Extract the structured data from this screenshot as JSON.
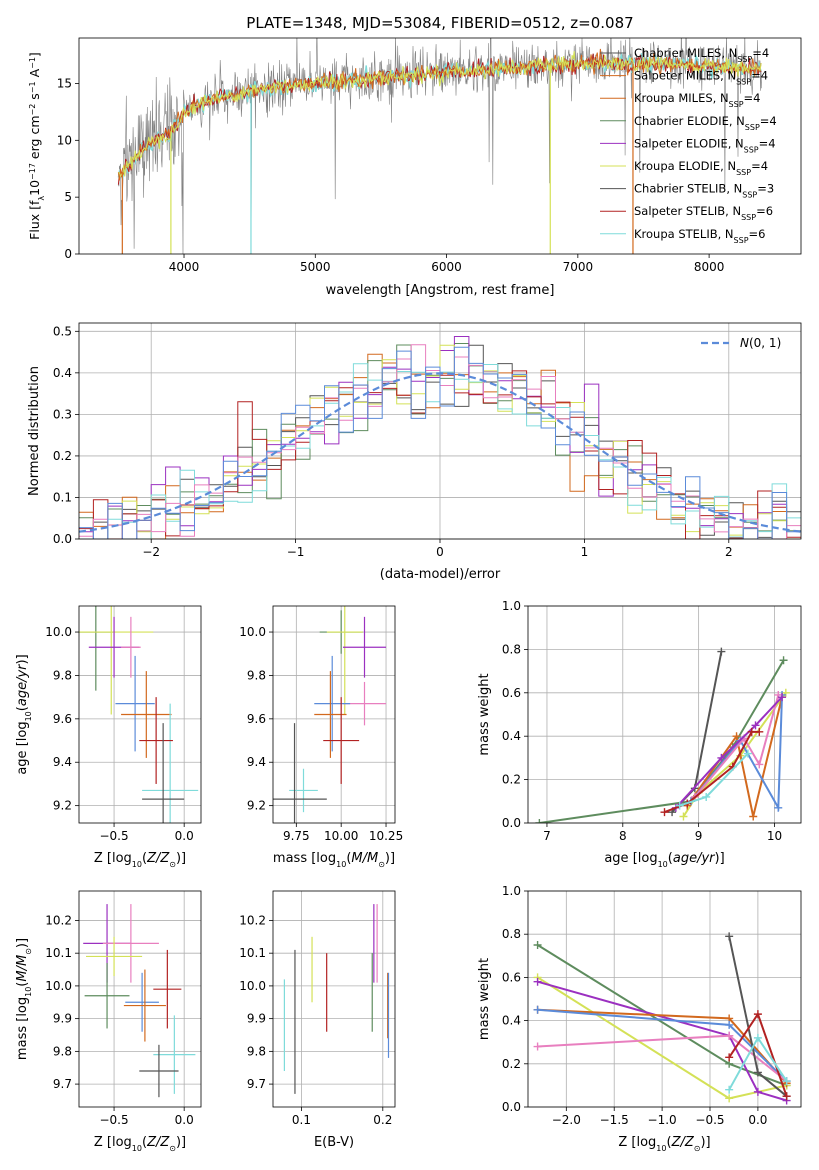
{
  "figure_title": "PLATE=1348, MJD=53084, FIBERID=0512, z=0.087",
  "colors": {
    "model1": "#1f77b4",
    "model2": "#ff7f0e",
    "model3": "#d2691e",
    "model4": "#5e8c5e",
    "model5": "#9b30c0",
    "model6": "#d4e157",
    "model7": "#555555",
    "model8": "#b22222",
    "model9": "#7fdbda",
    "model_blue": "#5b8bd9",
    "model_pink": "#e87fbf",
    "normal_curve": "#5b8bd9"
  },
  "chart_data": [
    {
      "id": "spectrum",
      "type": "line",
      "title": "PLATE=1348, MJD=53084, FIBERID=0512, z=0.087",
      "xlabel": "wavelength [Angstrom, rest frame]",
      "ylabel": "Flux [f_λ 10^-17 erg cm^-2 s^-1 A^-1]",
      "xlim": [
        3200,
        8700
      ],
      "ylim": [
        0,
        19
      ],
      "xticks": [
        4000,
        5000,
        6000,
        7000,
        8000
      ],
      "yticks": [
        0,
        5,
        10,
        15
      ],
      "legend_position": "right",
      "legend": [
        "Chabrier MILES, N_SSP=4",
        "Salpeter MILES, N_SSP=4",
        "Kroupa MILES, N_SSP=4",
        "Chabrier ELODIE, N_SSP=4",
        "Salpeter ELODIE, N_SSP=4",
        "Kroupa ELODIE, N_SSP=4",
        "Chabrier STELIB, N_SSP=3",
        "Salpeter STELIB, N_SSP=6",
        "Kroupa STELIB, N_SSP=6"
      ],
      "continuum": {
        "x": [
          3500,
          3700,
          3900,
          4000,
          4100,
          4300,
          4600,
          5000,
          5500,
          6000,
          6500,
          7000,
          7500,
          8000,
          8400
        ],
        "y": [
          6.8,
          9.5,
          10.8,
          12.3,
          13.2,
          13.8,
          14.6,
          15.0,
          15.5,
          16.0,
          16.4,
          16.7,
          16.7,
          16.5,
          16.3
        ]
      },
      "grid": false
    },
    {
      "id": "residuals",
      "type": "histogram",
      "xlabel": "(data-model)/error",
      "ylabel": "Normed distribution",
      "xlim": [
        -2.5,
        2.5
      ],
      "ylim": [
        0,
        0.52
      ],
      "xticks": [
        -2,
        -1,
        0,
        1,
        2
      ],
      "yticks": [
        0.0,
        0.1,
        0.2,
        0.3,
        0.4,
        0.5
      ],
      "legend": [
        "N(0, 1)"
      ],
      "legend_position": "top-right",
      "grid": true,
      "bin_width": 0.1,
      "bin_start": -2.5
    },
    {
      "id": "age_vs_Z",
      "type": "scatter",
      "xlabel": "Z [log10(Z/Z_sun)]",
      "ylabel": "age [log10(age/yr)]",
      "xlim": [
        -0.75,
        0.12
      ],
      "ylim": [
        9.12,
        10.12
      ],
      "xticks": [
        -0.5,
        0.0
      ],
      "yticks": [
        9.2,
        9.4,
        9.6,
        9.8,
        10.0
      ],
      "grid": true,
      "points": [
        {
          "x": -0.63,
          "y": 10.0,
          "xerr": 0.12,
          "yerr": 0.27,
          "color": "#5e8c5e"
        },
        {
          "x": -0.52,
          "y": 10.0,
          "xerr": 0.3,
          "yerr": 0.38,
          "color": "#d4e157"
        },
        {
          "x": -0.5,
          "y": 9.93,
          "xerr": 0.18,
          "yerr": 0.14,
          "color": "#9b30c0"
        },
        {
          "x": -0.38,
          "y": 9.93,
          "xerr": 0.07,
          "yerr": 0.14,
          "color": "#e87fbf"
        },
        {
          "x": -0.35,
          "y": 9.67,
          "xerr": 0.14,
          "yerr": 0.22,
          "color": "#5b8bd9"
        },
        {
          "x": -0.27,
          "y": 9.62,
          "xerr": 0.18,
          "yerr": 0.2,
          "color": "#d2691e"
        },
        {
          "x": -0.1,
          "y": 9.27,
          "xerr": 0.2,
          "yerr": 0.4,
          "color": "#7fdbda"
        },
        {
          "x": -0.2,
          "y": 9.5,
          "xerr": 0.12,
          "yerr": 0.2,
          "color": "#b22222"
        },
        {
          "x": -0.15,
          "y": 9.23,
          "xerr": 0.15,
          "yerr": 0.35,
          "color": "#555555"
        }
      ]
    },
    {
      "id": "age_vs_mass",
      "type": "scatter",
      "xlabel": "mass [log10(M/M_sun)]",
      "ylabel": "",
      "xlim": [
        9.62,
        10.3
      ],
      "ylim": [
        9.12,
        10.12
      ],
      "xticks": [
        9.75,
        10.0,
        10.25
      ],
      "yticks": [
        9.2,
        9.4,
        9.6,
        9.8,
        10.0
      ],
      "grid": true,
      "points": [
        {
          "x": 10.0,
          "y": 10.0,
          "xerr": 0.12,
          "yerr": 0.1,
          "color": "#5e8c5e"
        },
        {
          "x": 10.02,
          "y": 10.0,
          "xerr": 0.1,
          "yerr": 0.38,
          "color": "#d4e157"
        },
        {
          "x": 10.13,
          "y": 9.93,
          "xerr": 0.12,
          "yerr": 0.14,
          "color": "#9b30c0"
        },
        {
          "x": 10.13,
          "y": 9.67,
          "xerr": 0.12,
          "yerr": 0.1,
          "color": "#e87fbf"
        },
        {
          "x": 9.95,
          "y": 9.67,
          "xerr": 0.1,
          "yerr": 0.22,
          "color": "#5b8bd9"
        },
        {
          "x": 9.94,
          "y": 9.62,
          "xerr": 0.09,
          "yerr": 0.2,
          "color": "#d2691e"
        },
        {
          "x": 9.79,
          "y": 9.27,
          "xerr": 0.08,
          "yerr": 0.1,
          "color": "#7fdbda"
        },
        {
          "x": 10.0,
          "y": 9.5,
          "xerr": 0.1,
          "yerr": 0.2,
          "color": "#b22222"
        },
        {
          "x": 9.74,
          "y": 9.23,
          "xerr": 0.18,
          "yerr": 0.35,
          "color": "#555555"
        }
      ]
    },
    {
      "id": "weight_vs_age",
      "type": "line",
      "xlabel": "age [log10(age/yr)]",
      "ylabel": "mass weight",
      "xlim": [
        6.75,
        10.35
      ],
      "ylim": [
        0,
        1.0
      ],
      "xticks": [
        7,
        8,
        9,
        10
      ],
      "yticks": [
        0.0,
        0.2,
        0.4,
        0.6,
        0.8,
        1.0
      ],
      "grid": true,
      "series": [
        {
          "color": "#555555",
          "x": [
            8.65,
            8.95,
            9.3
          ],
          "y": [
            0.05,
            0.16,
            0.79
          ]
        },
        {
          "color": "#5e8c5e",
          "x": [
            6.9,
            8.9,
            9.45,
            10.12
          ],
          "y": [
            0.0,
            0.1,
            0.35,
            0.75
          ]
        },
        {
          "color": "#d4e157",
          "x": [
            8.8,
            9.0,
            9.55,
            10.15
          ],
          "y": [
            0.03,
            0.14,
            0.31,
            0.6
          ]
        },
        {
          "color": "#d2691e",
          "x": [
            8.85,
            9.5,
            9.72,
            10.1
          ],
          "y": [
            0.08,
            0.4,
            0.03,
            0.58
          ]
        },
        {
          "color": "#5b8bd9",
          "x": [
            8.9,
            9.55,
            10.05,
            10.1
          ],
          "y": [
            0.1,
            0.38,
            0.07,
            0.59
          ]
        },
        {
          "color": "#e87fbf",
          "x": [
            8.95,
            9.6,
            9.8,
            10.05
          ],
          "y": [
            0.12,
            0.39,
            0.27,
            0.59
          ]
        },
        {
          "color": "#9b30c0",
          "x": [
            8.7,
            9.3,
            9.75,
            10.1
          ],
          "y": [
            0.07,
            0.3,
            0.45,
            0.58
          ]
        },
        {
          "color": "#b22222",
          "x": [
            8.55,
            8.85,
            9.45,
            9.7,
            9.8
          ],
          "y": [
            0.05,
            0.09,
            0.26,
            0.42,
            0.42
          ]
        },
        {
          "color": "#7fdbda",
          "x": [
            8.75,
            9.1,
            9.65
          ],
          "y": [
            0.08,
            0.12,
            0.32
          ]
        }
      ]
    },
    {
      "id": "mass_vs_Z",
      "type": "scatter",
      "xlabel": "Z [log10(Z/Z_sun)]",
      "ylabel": "mass [log10(M/M_sun)]",
      "xlim": [
        -0.75,
        0.12
      ],
      "ylim": [
        9.63,
        10.29
      ],
      "xticks": [
        -0.5,
        0.0
      ],
      "yticks": [
        9.7,
        9.8,
        9.9,
        10.0,
        10.1,
        10.2
      ],
      "grid": true,
      "points": [
        {
          "x": -0.55,
          "y": 10.13,
          "xerr": 0.17,
          "yerr": 0.12,
          "color": "#9b30c0"
        },
        {
          "x": -0.38,
          "y": 10.13,
          "xerr": 0.2,
          "yerr": 0.12,
          "color": "#e87fbf"
        },
        {
          "x": -0.5,
          "y": 10.09,
          "xerr": 0.2,
          "yerr": 0.06,
          "color": "#d4e157"
        },
        {
          "x": -0.55,
          "y": 9.97,
          "xerr": 0.16,
          "yerr": 0.1,
          "color": "#5e8c5e"
        },
        {
          "x": -0.3,
          "y": 9.95,
          "xerr": 0.12,
          "yerr": 0.09,
          "color": "#5b8bd9"
        },
        {
          "x": -0.28,
          "y": 9.94,
          "xerr": 0.15,
          "yerr": 0.11,
          "color": "#d2691e"
        },
        {
          "x": -0.12,
          "y": 9.99,
          "xerr": 0.1,
          "yerr": 0.12,
          "color": "#b22222"
        },
        {
          "x": -0.07,
          "y": 9.79,
          "xerr": 0.15,
          "yerr": 0.12,
          "color": "#7fdbda"
        },
        {
          "x": -0.18,
          "y": 9.74,
          "xerr": 0.14,
          "yerr": 0.08,
          "color": "#555555"
        }
      ]
    },
    {
      "id": "mass_vs_EBV",
      "type": "errorbar",
      "xlabel": "E(B-V)",
      "ylabel": "",
      "xlim": [
        0.065,
        0.215
      ],
      "ylim": [
        9.63,
        10.29
      ],
      "xticks": [
        0.1,
        0.2
      ],
      "yticks": [
        9.7,
        9.8,
        9.9,
        10.0,
        10.1,
        10.2
      ],
      "grid": true,
      "points": [
        {
          "x": 0.079,
          "y": 9.88,
          "yerr": 0.14,
          "color": "#7fdbda"
        },
        {
          "x": 0.092,
          "y": 9.89,
          "yerr": 0.22,
          "color": "#555555"
        },
        {
          "x": 0.113,
          "y": 10.05,
          "yerr": 0.1,
          "color": "#d4e157"
        },
        {
          "x": 0.131,
          "y": 9.98,
          "yerr": 0.12,
          "color": "#b22222"
        },
        {
          "x": 0.187,
          "y": 9.98,
          "yerr": 0.12,
          "color": "#5e8c5e"
        },
        {
          "x": 0.189,
          "y": 10.13,
          "yerr": 0.12,
          "color": "#9b30c0"
        },
        {
          "x": 0.193,
          "y": 10.13,
          "yerr": 0.12,
          "color": "#e87fbf"
        },
        {
          "x": 0.206,
          "y": 9.94,
          "yerr": 0.1,
          "color": "#d2691e"
        },
        {
          "x": 0.207,
          "y": 9.91,
          "yerr": 0.13,
          "color": "#5b8bd9"
        }
      ]
    },
    {
      "id": "weight_vs_Z",
      "type": "line",
      "xlabel": "Z [log10(Z/Z_sun)]",
      "ylabel": "mass weight",
      "xlim": [
        -2.4,
        0.45
      ],
      "ylim": [
        0,
        1.0
      ],
      "xticks": [
        -2.0,
        -1.5,
        -1.0,
        -0.5,
        0.0
      ],
      "yticks": [
        0.0,
        0.2,
        0.4,
        0.6,
        0.8,
        1.0
      ],
      "grid": true,
      "series": [
        {
          "color": "#5e8c5e",
          "x": [
            -2.3,
            -0.3,
            0.3
          ],
          "y": [
            0.75,
            0.2,
            0.1
          ]
        },
        {
          "color": "#d4e157",
          "x": [
            -2.3,
            -0.3,
            0.3
          ],
          "y": [
            0.6,
            0.04,
            0.1
          ]
        },
        {
          "color": "#9b30c0",
          "x": [
            -2.3,
            -0.3,
            0.0,
            0.3
          ],
          "y": [
            0.58,
            0.33,
            0.07,
            0.03
          ]
        },
        {
          "color": "#d2691e",
          "x": [
            -2.3,
            -0.3,
            0.3
          ],
          "y": [
            0.45,
            0.41,
            0.11
          ]
        },
        {
          "color": "#5b8bd9",
          "x": [
            -2.3,
            -0.3,
            0.3
          ],
          "y": [
            0.45,
            0.38,
            0.12
          ]
        },
        {
          "color": "#e87fbf",
          "x": [
            -2.3,
            -0.3,
            0.3
          ],
          "y": [
            0.28,
            0.33,
            0.12
          ]
        },
        {
          "color": "#555555",
          "x": [
            -0.3,
            0.0,
            0.3
          ],
          "y": [
            0.79,
            0.16,
            0.05
          ]
        },
        {
          "color": "#b22222",
          "x": [
            -0.3,
            0.0,
            0.3
          ],
          "y": [
            0.23,
            0.43,
            0.05
          ]
        },
        {
          "color": "#7fdbda",
          "x": [
            -0.3,
            0.0,
            0.3
          ],
          "y": [
            0.08,
            0.32,
            0.12
          ]
        }
      ]
    }
  ]
}
